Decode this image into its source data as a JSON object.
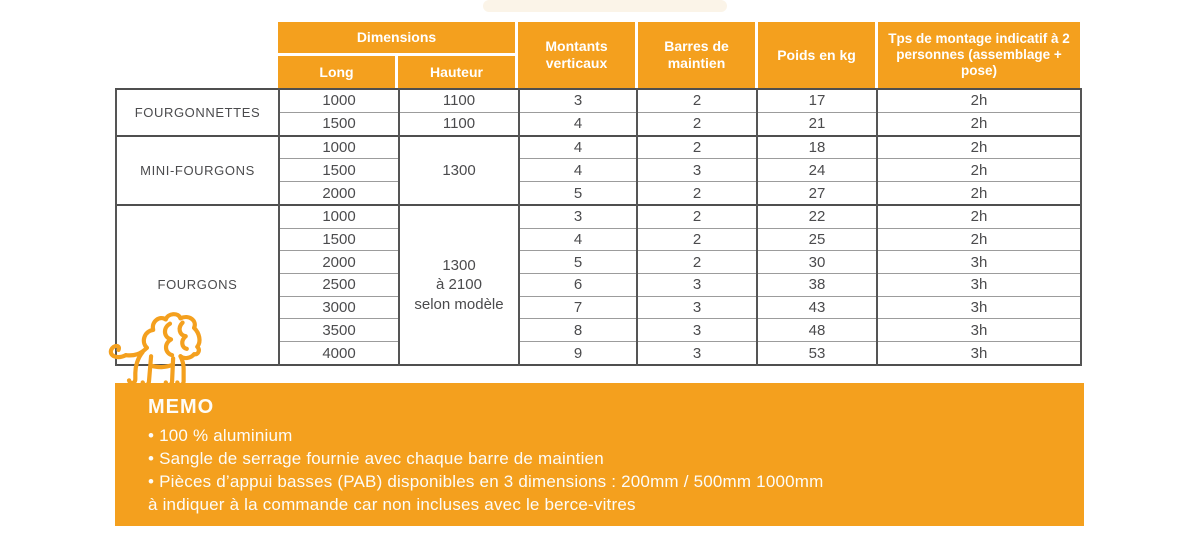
{
  "colors": {
    "orange": "#F4A01E",
    "header_text": "#ffffff",
    "body_text": "#4b4b4d",
    "border_dark": "#4f4f4f",
    "border_light": "#9c9c9c"
  },
  "table": {
    "headers": {
      "dimensions": "Dimensions",
      "long": "Long",
      "hauteur": "Hauteur",
      "montants": "Montants verticaux",
      "barres": "Barres de maintien",
      "poids": "Poids en kg",
      "tps": "Tps de montage indicatif à 2 personnes (assemblage + pose)"
    },
    "groups": [
      {
        "name": "FOURGONNETTES",
        "hauteur_merged": null,
        "rows": [
          {
            "long": "1000",
            "hauteur": "1100",
            "montants": "3",
            "barres": "2",
            "poids": "17",
            "tps": "2h"
          },
          {
            "long": "1500",
            "hauteur": "1100",
            "montants": "4",
            "barres": "2",
            "poids": "21",
            "tps": "2h"
          }
        ]
      },
      {
        "name": "MINI-FOURGONS",
        "hauteur_merged": [
          "1300"
        ],
        "rows": [
          {
            "long": "1000",
            "montants": "4",
            "barres": "2",
            "poids": "18",
            "tps": "2h"
          },
          {
            "long": "1500",
            "montants": "4",
            "barres": "3",
            "poids": "24",
            "tps": "2h"
          },
          {
            "long": "2000",
            "montants": "5",
            "barres": "2",
            "poids": "27",
            "tps": "2h"
          }
        ]
      },
      {
        "name": "FOURGONS",
        "hauteur_merged": [
          "1300",
          "à 2100",
          "selon modèle"
        ],
        "rows": [
          {
            "long": "1000",
            "montants": "3",
            "barres": "2",
            "poids": "22",
            "tps": "2h"
          },
          {
            "long": "1500",
            "montants": "4",
            "barres": "2",
            "poids": "25",
            "tps": "2h"
          },
          {
            "long": "2000",
            "montants": "5",
            "barres": "2",
            "poids": "30",
            "tps": "3h"
          },
          {
            "long": "2500",
            "montants": "6",
            "barres": "3",
            "poids": "38",
            "tps": "3h"
          },
          {
            "long": "3000",
            "montants": "7",
            "barres": "3",
            "poids": "43",
            "tps": "3h"
          },
          {
            "long": "3500",
            "montants": "8",
            "barres": "3",
            "poids": "48",
            "tps": "3h"
          },
          {
            "long": "4000",
            "montants": "9",
            "barres": "3",
            "poids": "53",
            "tps": "3h"
          }
        ]
      }
    ]
  },
  "memo": {
    "title": "MEMO",
    "lines": [
      "• 100 % aluminium",
      "• Sangle de serrage fournie avec chaque barre de maintien",
      "• Pièces d’appui basses (PAB) disponibles en 3 dimensions : 200mm / 500mm 1000mm",
      "à indiquer à la commande car non incluses avec le berce-vitres"
    ]
  },
  "icons": {
    "lion": "lion-logo"
  }
}
